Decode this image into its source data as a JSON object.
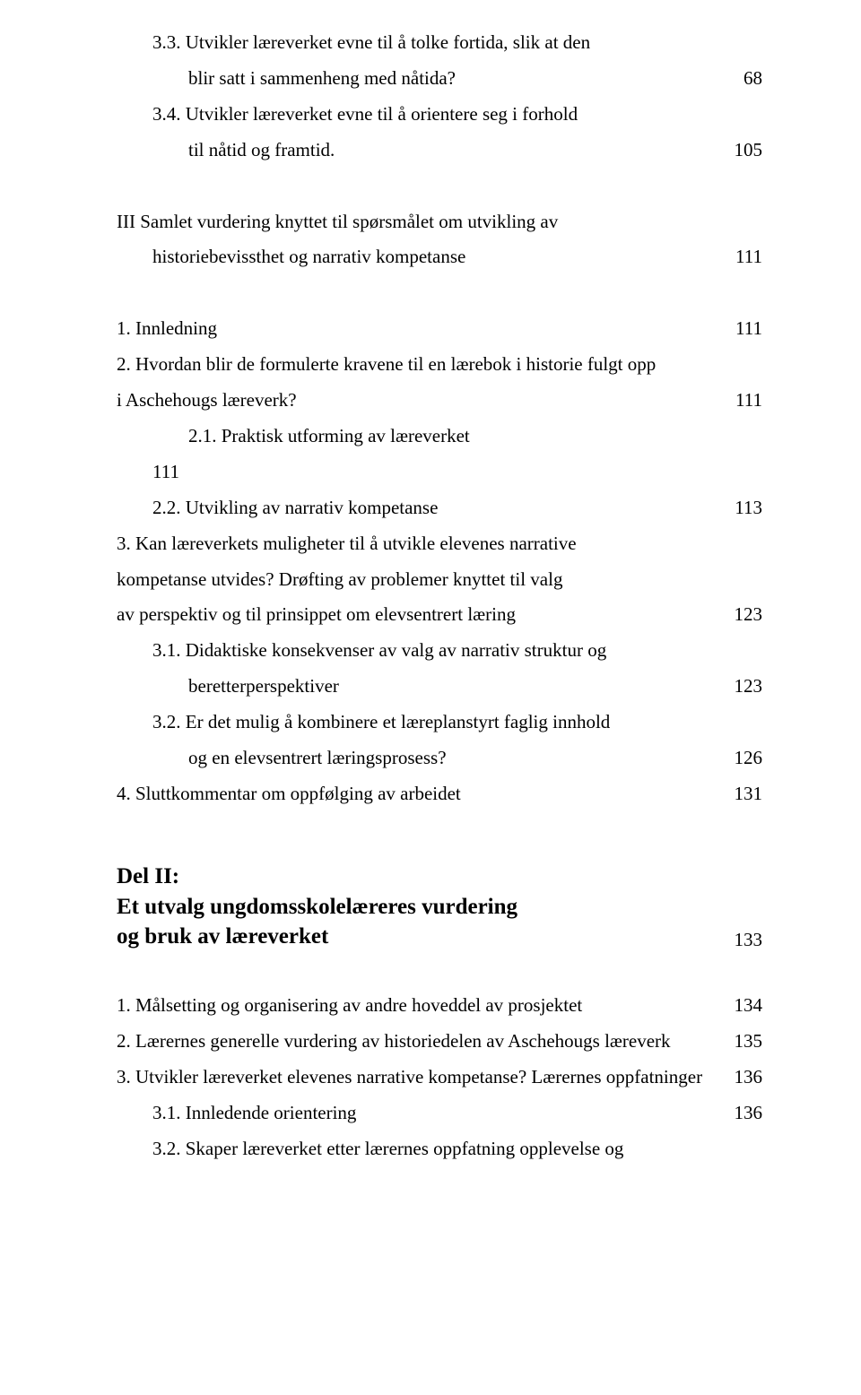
{
  "lines": [
    {
      "kind": "row",
      "indent": "ind1",
      "label": "3.3. Utvikler læreverket evne til å tolke fortida, slik at den",
      "page": ""
    },
    {
      "kind": "row",
      "indent": "ind2",
      "label": "blir satt i sammenheng med nåtida?",
      "page": "68"
    },
    {
      "kind": "row",
      "indent": "ind1",
      "label": "3.4. Utvikler læreverket evne til å orientere seg i forhold",
      "page": ""
    },
    {
      "kind": "row",
      "indent": "ind2",
      "label": "til nåtid og framtid.",
      "page": "105"
    },
    {
      "kind": "gap"
    },
    {
      "kind": "row",
      "indent": "",
      "label": "III  Samlet vurdering knyttet til spørsmålet om utvikling av",
      "page": ""
    },
    {
      "kind": "row",
      "indent": "ind1",
      "label": "historiebevissthet og narrativ kompetanse",
      "page": "111"
    },
    {
      "kind": "gap"
    },
    {
      "kind": "row",
      "indent": "",
      "label": "1. Innledning",
      "page": "111"
    },
    {
      "kind": "row",
      "indent": "",
      "label": "2. Hvordan blir de formulerte kravene til en lærebok i historie fulgt opp",
      "page": ""
    },
    {
      "kind": "row",
      "indent": "",
      "label": "i Aschehougs læreverk?",
      "page": "111"
    },
    {
      "kind": "row",
      "indent": "ind2",
      "label": "2.1. Praktisk utforming av læreverket",
      "page": ""
    },
    {
      "kind": "plain",
      "indent": "ind1",
      "label": "111"
    },
    {
      "kind": "row",
      "indent": "ind1",
      "label": "2.2. Utvikling av narrativ kompetanse",
      "page": "113"
    },
    {
      "kind": "row",
      "indent": "",
      "label": "3. Kan læreverkets muligheter til å utvikle elevenes narrative",
      "page": ""
    },
    {
      "kind": "row",
      "indent": "",
      "label": "kompetanse utvides? Drøfting av problemer knyttet til valg",
      "page": ""
    },
    {
      "kind": "row",
      "indent": "",
      "label": "av perspektiv og til prinsippet om elevsentrert læring",
      "page": "123"
    },
    {
      "kind": "row",
      "indent": "ind1",
      "label": "3.1. Didaktiske konsekvenser av valg av narrativ struktur og",
      "page": ""
    },
    {
      "kind": "row",
      "indent": "ind2",
      "label": "beretterperspektiver",
      "page": "123"
    },
    {
      "kind": "row",
      "indent": "ind1",
      "label": "3.2. Er det mulig å kombinere et læreplanstyrt faglig innhold",
      "page": ""
    },
    {
      "kind": "row",
      "indent": "ind2",
      "label": "og en elevsentrert læringsprosess?",
      "page": "126"
    },
    {
      "kind": "row",
      "indent": "",
      "label": "4. Sluttkommentar om oppfølging av arbeidet",
      "page": "131"
    }
  ],
  "del2": {
    "title_l1": "Del II:",
    "title_l2": "Et utvalg ungdomsskolelæreres vurdering",
    "title_l3": "og bruk av læreverket",
    "page": "133"
  },
  "lines2": [
    {
      "kind": "gap"
    },
    {
      "kind": "row",
      "indent": "",
      "label": "1. Målsetting og organisering av andre hoveddel av prosjektet",
      "page": "134"
    },
    {
      "kind": "row",
      "indent": "",
      "label": "2. Lærernes generelle vurdering av historiedelen av Aschehougs læreverk",
      "page": "135"
    },
    {
      "kind": "row",
      "indent": "",
      "label": "3. Utvikler læreverket elevenes narrative kompetanse? Lærernes oppfatninger",
      "page": "136"
    },
    {
      "kind": "row",
      "indent": "ind1",
      "label": "3.1. Innledende orientering",
      "page": "136"
    },
    {
      "kind": "row",
      "indent": "ind1",
      "label": "3.2. Skaper læreverket etter lærernes oppfatning opplevelse og",
      "page": ""
    }
  ]
}
